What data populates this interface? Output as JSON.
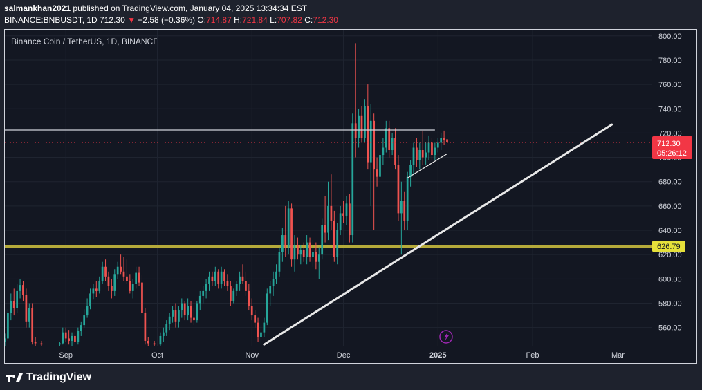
{
  "header": {
    "author": "salmankhan2021",
    "published_text": "published on TradingView.com, January 04, 2025 13:34:34 EST",
    "symbol_line": "BINANCE:BNBUSDT, 1D",
    "last": "712.30",
    "change_arrow": "▼",
    "change": "−2.58 (−0.36%)",
    "o_label": "O:",
    "o_val": "714.87",
    "h_label": "H:",
    "h_val": "721.84",
    "l_label": "L:",
    "l_val": "707.82",
    "c_label": "C:",
    "c_val": "712.30"
  },
  "footer": {
    "logo_text": "TradingView"
  },
  "colors": {
    "up": "#26a69a",
    "down": "#ef5350",
    "bg": "#131722",
    "support": "#b5aa3a",
    "trend": "#e8e8e8",
    "price_tag": "#f23645"
  },
  "chart_data": {
    "type": "candlestick",
    "title": "Binance Coin / TetherUS, 1D, BINANCE",
    "y_ticks": [
      560,
      580,
      600,
      620,
      640,
      660,
      680,
      700,
      720,
      740,
      760,
      780,
      800
    ],
    "y_tick_labels": [
      "560.00",
      "580.00",
      "600.00",
      "620.00",
      "640.00",
      "660.00",
      "680.00",
      "700.00",
      "720.00",
      "740.00",
      "760.00",
      "780.00",
      "800.00"
    ],
    "ylim": [
      545,
      805
    ],
    "x_ticks": [
      {
        "date": "2024-09-01",
        "label": "Sep"
      },
      {
        "date": "2024-10-01",
        "label": "Oct"
      },
      {
        "date": "2024-11-01",
        "label": "Nov"
      },
      {
        "date": "2024-12-01",
        "label": "Dec"
      },
      {
        "date": "2025-01-01",
        "label": "2025"
      },
      {
        "date": "2025-02-01",
        "label": "Feb"
      },
      {
        "date": "2025-03-01",
        "label": "Mar"
      }
    ],
    "xlim": [
      "2024-08-12",
      "2025-03-12"
    ],
    "last_price": {
      "value": 712.3,
      "label": "712.30",
      "countdown": "05:26:12"
    },
    "support_level": {
      "value": 626.79,
      "label": "626.79"
    },
    "resistance_line": {
      "start": "2024-08-12",
      "end": "2024-12-31",
      "value": 722.5
    },
    "trend_line": {
      "start": {
        "date": "2024-11-05",
        "value": 546
      },
      "end": {
        "date": "2025-02-27",
        "value": 727
      }
    },
    "wedge_lines": [
      {
        "start": {
          "date": "2024-12-22",
          "value": 683
        },
        "end": {
          "date": "2025-01-04",
          "value": 703
        }
      }
    ],
    "candles": [
      {
        "date": "2024-08-12",
        "o": 548,
        "h": 555,
        "l": 545,
        "c": 551
      },
      {
        "date": "2024-08-13",
        "o": 551,
        "h": 575,
        "l": 549,
        "c": 572
      },
      {
        "date": "2024-08-14",
        "o": 572,
        "h": 588,
        "l": 566,
        "c": 582
      },
      {
        "date": "2024-08-15",
        "o": 582,
        "h": 592,
        "l": 570,
        "c": 576
      },
      {
        "date": "2024-08-16",
        "o": 576,
        "h": 596,
        "l": 572,
        "c": 590
      },
      {
        "date": "2024-08-17",
        "o": 590,
        "h": 600,
        "l": 584,
        "c": 595
      },
      {
        "date": "2024-08-18",
        "o": 595,
        "h": 598,
        "l": 582,
        "c": 587
      },
      {
        "date": "2024-08-19",
        "o": 587,
        "h": 592,
        "l": 560,
        "c": 565
      },
      {
        "date": "2024-08-20",
        "o": 565,
        "h": 580,
        "l": 560,
        "c": 576
      },
      {
        "date": "2024-08-21",
        "o": 576,
        "h": 580,
        "l": 546,
        "c": 548
      },
      {
        "date": "2024-08-22",
        "o": 548,
        "h": 552,
        "l": 545,
        "c": 547
      },
      {
        "date": "2024-08-24",
        "o": 547,
        "h": 549,
        "l": 545,
        "c": 546
      },
      {
        "date": "2024-08-30",
        "o": 546,
        "h": 548,
        "l": 545,
        "c": 547
      },
      {
        "date": "2024-08-31",
        "o": 547,
        "h": 560,
        "l": 546,
        "c": 556
      },
      {
        "date": "2024-09-01",
        "o": 556,
        "h": 560,
        "l": 548,
        "c": 551
      },
      {
        "date": "2024-09-02",
        "o": 551,
        "h": 558,
        "l": 546,
        "c": 549
      },
      {
        "date": "2024-09-03",
        "o": 549,
        "h": 556,
        "l": 545,
        "c": 553
      },
      {
        "date": "2024-09-04",
        "o": 553,
        "h": 556,
        "l": 546,
        "c": 548
      },
      {
        "date": "2024-09-05",
        "o": 548,
        "h": 560,
        "l": 546,
        "c": 557
      },
      {
        "date": "2024-09-06",
        "o": 557,
        "h": 565,
        "l": 553,
        "c": 562
      },
      {
        "date": "2024-09-07",
        "o": 562,
        "h": 575,
        "l": 560,
        "c": 570
      },
      {
        "date": "2024-09-08",
        "o": 570,
        "h": 584,
        "l": 568,
        "c": 578
      },
      {
        "date": "2024-09-09",
        "o": 578,
        "h": 592,
        "l": 575,
        "c": 588
      },
      {
        "date": "2024-09-10",
        "o": 588,
        "h": 596,
        "l": 583,
        "c": 592
      },
      {
        "date": "2024-09-11",
        "o": 592,
        "h": 598,
        "l": 585,
        "c": 590
      },
      {
        "date": "2024-09-12",
        "o": 590,
        "h": 602,
        "l": 588,
        "c": 598
      },
      {
        "date": "2024-09-13",
        "o": 598,
        "h": 614,
        "l": 596,
        "c": 610
      },
      {
        "date": "2024-09-14",
        "o": 610,
        "h": 616,
        "l": 598,
        "c": 602
      },
      {
        "date": "2024-09-15",
        "o": 602,
        "h": 606,
        "l": 590,
        "c": 594
      },
      {
        "date": "2024-09-16",
        "o": 594,
        "h": 600,
        "l": 584,
        "c": 590
      },
      {
        "date": "2024-09-17",
        "o": 590,
        "h": 608,
        "l": 586,
        "c": 604
      },
      {
        "date": "2024-09-18",
        "o": 604,
        "h": 614,
        "l": 600,
        "c": 610
      },
      {
        "date": "2024-09-19",
        "o": 610,
        "h": 620,
        "l": 604,
        "c": 606
      },
      {
        "date": "2024-09-20",
        "o": 606,
        "h": 618,
        "l": 598,
        "c": 602
      },
      {
        "date": "2024-09-21",
        "o": 602,
        "h": 616,
        "l": 596,
        "c": 598
      },
      {
        "date": "2024-09-22",
        "o": 598,
        "h": 604,
        "l": 588,
        "c": 590
      },
      {
        "date": "2024-09-23",
        "o": 590,
        "h": 600,
        "l": 584,
        "c": 596
      },
      {
        "date": "2024-09-24",
        "o": 596,
        "h": 610,
        "l": 592,
        "c": 605
      },
      {
        "date": "2024-09-25",
        "o": 605,
        "h": 610,
        "l": 594,
        "c": 597
      },
      {
        "date": "2024-09-26",
        "o": 597,
        "h": 603,
        "l": 570,
        "c": 572
      },
      {
        "date": "2024-09-27",
        "o": 572,
        "h": 576,
        "l": 546,
        "c": 549
      },
      {
        "date": "2024-09-28",
        "o": 549,
        "h": 552,
        "l": 545,
        "c": 547
      },
      {
        "date": "2024-09-30",
        "o": 547,
        "h": 549,
        "l": 545,
        "c": 546
      },
      {
        "date": "2024-10-02",
        "o": 546,
        "h": 556,
        "l": 545,
        "c": 553
      },
      {
        "date": "2024-10-03",
        "o": 553,
        "h": 560,
        "l": 548,
        "c": 556
      },
      {
        "date": "2024-10-04",
        "o": 556,
        "h": 566,
        "l": 553,
        "c": 563
      },
      {
        "date": "2024-10-05",
        "o": 563,
        "h": 572,
        "l": 558,
        "c": 569
      },
      {
        "date": "2024-10-06",
        "o": 569,
        "h": 578,
        "l": 564,
        "c": 574
      },
      {
        "date": "2024-10-07",
        "o": 574,
        "h": 580,
        "l": 560,
        "c": 565
      },
      {
        "date": "2024-10-08",
        "o": 565,
        "h": 578,
        "l": 560,
        "c": 574
      },
      {
        "date": "2024-10-09",
        "o": 574,
        "h": 584,
        "l": 568,
        "c": 580
      },
      {
        "date": "2024-10-10",
        "o": 580,
        "h": 582,
        "l": 566,
        "c": 570
      },
      {
        "date": "2024-10-11",
        "o": 570,
        "h": 584,
        "l": 566,
        "c": 578
      },
      {
        "date": "2024-10-12",
        "o": 578,
        "h": 582,
        "l": 564,
        "c": 568
      },
      {
        "date": "2024-10-13",
        "o": 568,
        "h": 576,
        "l": 562,
        "c": 566
      },
      {
        "date": "2024-10-14",
        "o": 566,
        "h": 582,
        "l": 564,
        "c": 580
      },
      {
        "date": "2024-10-15",
        "o": 580,
        "h": 590,
        "l": 574,
        "c": 586
      },
      {
        "date": "2024-10-16",
        "o": 586,
        "h": 594,
        "l": 580,
        "c": 590
      },
      {
        "date": "2024-10-17",
        "o": 590,
        "h": 600,
        "l": 584,
        "c": 596
      },
      {
        "date": "2024-10-18",
        "o": 596,
        "h": 606,
        "l": 590,
        "c": 602
      },
      {
        "date": "2024-10-19",
        "o": 602,
        "h": 606,
        "l": 594,
        "c": 598
      },
      {
        "date": "2024-10-20",
        "o": 598,
        "h": 610,
        "l": 594,
        "c": 606
      },
      {
        "date": "2024-10-21",
        "o": 606,
        "h": 608,
        "l": 592,
        "c": 596
      },
      {
        "date": "2024-10-22",
        "o": 596,
        "h": 610,
        "l": 592,
        "c": 606
      },
      {
        "date": "2024-10-23",
        "o": 606,
        "h": 608,
        "l": 594,
        "c": 598
      },
      {
        "date": "2024-10-24",
        "o": 598,
        "h": 604,
        "l": 590,
        "c": 594
      },
      {
        "date": "2024-10-25",
        "o": 594,
        "h": 598,
        "l": 578,
        "c": 582
      },
      {
        "date": "2024-10-26",
        "o": 582,
        "h": 592,
        "l": 580,
        "c": 590
      },
      {
        "date": "2024-10-27",
        "o": 590,
        "h": 598,
        "l": 586,
        "c": 596
      },
      {
        "date": "2024-10-28",
        "o": 596,
        "h": 606,
        "l": 590,
        "c": 602
      },
      {
        "date": "2024-10-29",
        "o": 602,
        "h": 612,
        "l": 596,
        "c": 598
      },
      {
        "date": "2024-10-30",
        "o": 598,
        "h": 606,
        "l": 586,
        "c": 590
      },
      {
        "date": "2024-10-31",
        "o": 590,
        "h": 596,
        "l": 574,
        "c": 578
      },
      {
        "date": "2024-11-01",
        "o": 578,
        "h": 584,
        "l": 566,
        "c": 570
      },
      {
        "date": "2024-11-02",
        "o": 570,
        "h": 574,
        "l": 560,
        "c": 564
      },
      {
        "date": "2024-11-03",
        "o": 564,
        "h": 568,
        "l": 548,
        "c": 552
      },
      {
        "date": "2024-11-04",
        "o": 552,
        "h": 562,
        "l": 546,
        "c": 556
      },
      {
        "date": "2024-11-05",
        "o": 556,
        "h": 568,
        "l": 552,
        "c": 564
      },
      {
        "date": "2024-11-06",
        "o": 564,
        "h": 592,
        "l": 562,
        "c": 588
      },
      {
        "date": "2024-11-07",
        "o": 588,
        "h": 598,
        "l": 578,
        "c": 594
      },
      {
        "date": "2024-11-08",
        "o": 594,
        "h": 606,
        "l": 586,
        "c": 600
      },
      {
        "date": "2024-11-09",
        "o": 600,
        "h": 612,
        "l": 596,
        "c": 606
      },
      {
        "date": "2024-11-10",
        "o": 606,
        "h": 626,
        "l": 602,
        "c": 622
      },
      {
        "date": "2024-11-11",
        "o": 622,
        "h": 642,
        "l": 614,
        "c": 636
      },
      {
        "date": "2024-11-12",
        "o": 636,
        "h": 660,
        "l": 618,
        "c": 626
      },
      {
        "date": "2024-11-13",
        "o": 626,
        "h": 664,
        "l": 620,
        "c": 658
      },
      {
        "date": "2024-11-14",
        "o": 658,
        "h": 662,
        "l": 610,
        "c": 616
      },
      {
        "date": "2024-11-15",
        "o": 616,
        "h": 636,
        "l": 606,
        "c": 628
      },
      {
        "date": "2024-11-16",
        "o": 628,
        "h": 634,
        "l": 616,
        "c": 620
      },
      {
        "date": "2024-11-17",
        "o": 620,
        "h": 628,
        "l": 612,
        "c": 624
      },
      {
        "date": "2024-11-18",
        "o": 624,
        "h": 630,
        "l": 614,
        "c": 618
      },
      {
        "date": "2024-11-19",
        "o": 618,
        "h": 636,
        "l": 612,
        "c": 630
      },
      {
        "date": "2024-11-20",
        "o": 630,
        "h": 634,
        "l": 614,
        "c": 618
      },
      {
        "date": "2024-11-21",
        "o": 618,
        "h": 632,
        "l": 610,
        "c": 622
      },
      {
        "date": "2024-11-22",
        "o": 622,
        "h": 630,
        "l": 608,
        "c": 614
      },
      {
        "date": "2024-11-23",
        "o": 614,
        "h": 626,
        "l": 600,
        "c": 620
      },
      {
        "date": "2024-11-24",
        "o": 620,
        "h": 650,
        "l": 616,
        "c": 644
      },
      {
        "date": "2024-11-25",
        "o": 644,
        "h": 668,
        "l": 630,
        "c": 638
      },
      {
        "date": "2024-11-26",
        "o": 638,
        "h": 680,
        "l": 632,
        "c": 660
      },
      {
        "date": "2024-11-27",
        "o": 660,
        "h": 686,
        "l": 640,
        "c": 648
      },
      {
        "date": "2024-11-28",
        "o": 648,
        "h": 656,
        "l": 614,
        "c": 618
      },
      {
        "date": "2024-11-29",
        "o": 618,
        "h": 646,
        "l": 612,
        "c": 640
      },
      {
        "date": "2024-11-30",
        "o": 640,
        "h": 660,
        "l": 636,
        "c": 654
      },
      {
        "date": "2024-12-01",
        "o": 654,
        "h": 664,
        "l": 646,
        "c": 652
      },
      {
        "date": "2024-12-02",
        "o": 652,
        "h": 668,
        "l": 644,
        "c": 662
      },
      {
        "date": "2024-12-03",
        "o": 662,
        "h": 670,
        "l": 630,
        "c": 636
      },
      {
        "date": "2024-12-04",
        "o": 636,
        "h": 736,
        "l": 630,
        "c": 728
      },
      {
        "date": "2024-12-05",
        "o": 728,
        "h": 794,
        "l": 700,
        "c": 716
      },
      {
        "date": "2024-12-06",
        "o": 716,
        "h": 740,
        "l": 708,
        "c": 734
      },
      {
        "date": "2024-12-07",
        "o": 734,
        "h": 742,
        "l": 712,
        "c": 716
      },
      {
        "date": "2024-12-08",
        "o": 716,
        "h": 748,
        "l": 712,
        "c": 742
      },
      {
        "date": "2024-12-09",
        "o": 742,
        "h": 760,
        "l": 690,
        "c": 696
      },
      {
        "date": "2024-12-10",
        "o": 696,
        "h": 744,
        "l": 660,
        "c": 730
      },
      {
        "date": "2024-12-11",
        "o": 730,
        "h": 736,
        "l": 640,
        "c": 690
      },
      {
        "date": "2024-12-12",
        "o": 690,
        "h": 700,
        "l": 676,
        "c": 684
      },
      {
        "date": "2024-12-13",
        "o": 684,
        "h": 710,
        "l": 680,
        "c": 702
      },
      {
        "date": "2024-12-14",
        "o": 702,
        "h": 716,
        "l": 694,
        "c": 708
      },
      {
        "date": "2024-12-15",
        "o": 708,
        "h": 730,
        "l": 704,
        "c": 724
      },
      {
        "date": "2024-12-16",
        "o": 724,
        "h": 730,
        "l": 700,
        "c": 706
      },
      {
        "date": "2024-12-17",
        "o": 706,
        "h": 720,
        "l": 702,
        "c": 716
      },
      {
        "date": "2024-12-18",
        "o": 716,
        "h": 724,
        "l": 690,
        "c": 694
      },
      {
        "date": "2024-12-19",
        "o": 694,
        "h": 702,
        "l": 648,
        "c": 654
      },
      {
        "date": "2024-12-20",
        "o": 654,
        "h": 680,
        "l": 620,
        "c": 664
      },
      {
        "date": "2024-12-21",
        "o": 664,
        "h": 672,
        "l": 640,
        "c": 648
      },
      {
        "date": "2024-12-22",
        "o": 648,
        "h": 688,
        "l": 640,
        "c": 684
      },
      {
        "date": "2024-12-23",
        "o": 684,
        "h": 698,
        "l": 676,
        "c": 694
      },
      {
        "date": "2024-12-24",
        "o": 694,
        "h": 712,
        "l": 686,
        "c": 708
      },
      {
        "date": "2024-12-25",
        "o": 708,
        "h": 716,
        "l": 692,
        "c": 698
      },
      {
        "date": "2024-12-26",
        "o": 698,
        "h": 712,
        "l": 690,
        "c": 706
      },
      {
        "date": "2024-12-27",
        "o": 706,
        "h": 722,
        "l": 694,
        "c": 700
      },
      {
        "date": "2024-12-28",
        "o": 700,
        "h": 712,
        "l": 694,
        "c": 704
      },
      {
        "date": "2024-12-29",
        "o": 704,
        "h": 718,
        "l": 698,
        "c": 712
      },
      {
        "date": "2024-12-30",
        "o": 712,
        "h": 716,
        "l": 698,
        "c": 702
      },
      {
        "date": "2024-12-31",
        "o": 702,
        "h": 712,
        "l": 698,
        "c": 708
      },
      {
        "date": "2025-01-01",
        "o": 708,
        "h": 716,
        "l": 704,
        "c": 712
      },
      {
        "date": "2025-01-02",
        "o": 712,
        "h": 720,
        "l": 706,
        "c": 716
      },
      {
        "date": "2025-01-03",
        "o": 716,
        "h": 722,
        "l": 710,
        "c": 714
      },
      {
        "date": "2025-01-04",
        "o": 714.87,
        "h": 721.84,
        "l": 707.82,
        "c": 712.3
      }
    ]
  }
}
